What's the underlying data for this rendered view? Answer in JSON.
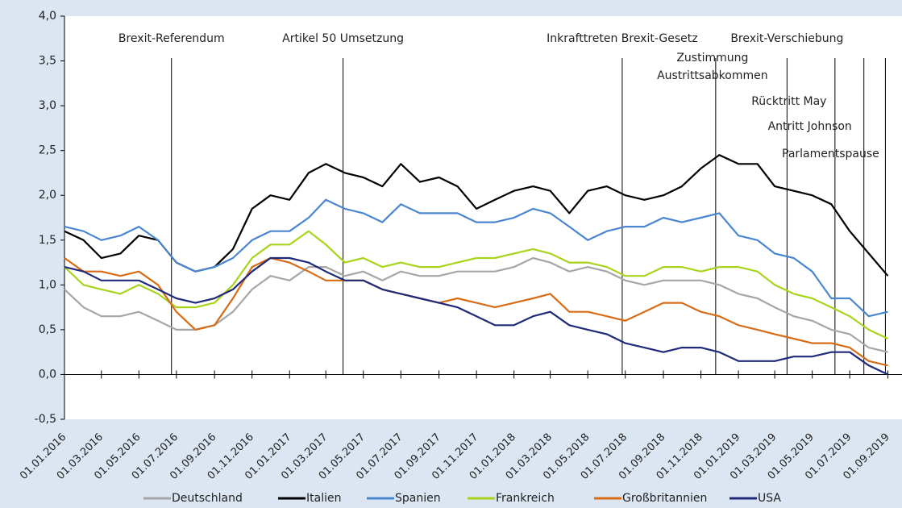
{
  "chart_data": {
    "type": "line",
    "x": [
      "01.01.2016",
      "01.02.2016",
      "01.03.2016",
      "01.04.2016",
      "01.05.2016",
      "01.06.2016",
      "01.07.2016",
      "01.08.2016",
      "01.09.2016",
      "01.10.2016",
      "01.11.2016",
      "01.12.2016",
      "01.01.2017",
      "01.02.2017",
      "01.03.2017",
      "01.04.2017",
      "01.05.2017",
      "01.06.2017",
      "01.07.2017",
      "01.08.2017",
      "01.09.2017",
      "01.10.2017",
      "01.11.2017",
      "01.12.2017",
      "01.01.2018",
      "01.02.2018",
      "01.03.2018",
      "01.04.2018",
      "01.05.2018",
      "01.06.2018",
      "01.07.2018",
      "01.08.2018",
      "01.09.2018",
      "01.10.2018",
      "01.11.2018",
      "01.12.2018",
      "01.01.2019",
      "01.02.2019",
      "01.03.2019",
      "01.04.2019",
      "01.05.2019",
      "01.06.2019",
      "01.07.2019",
      "01.08.2019",
      "01.09.2019"
    ],
    "series": [
      {
        "name": "Deutschland",
        "color": "#a6a6a6",
        "values": [
          0.95,
          0.75,
          0.65,
          0.65,
          0.7,
          0.6,
          0.5,
          0.5,
          0.55,
          0.7,
          0.95,
          1.1,
          1.05,
          1.2,
          1.2,
          1.1,
          1.15,
          1.05,
          1.15,
          1.1,
          1.1,
          1.15,
          1.15,
          1.15,
          1.2,
          1.3,
          1.25,
          1.15,
          1.2,
          1.15,
          1.05,
          1.0,
          1.05,
          1.05,
          1.05,
          1.0,
          0.9,
          0.85,
          0.75,
          0.65,
          0.6,
          0.5,
          0.45,
          0.3,
          0.25
        ]
      },
      {
        "name": "Italien",
        "color": "#000000",
        "values": [
          1.6,
          1.5,
          1.3,
          1.35,
          1.55,
          1.5,
          1.25,
          1.15,
          1.2,
          1.4,
          1.85,
          2.0,
          1.95,
          2.25,
          2.35,
          2.25,
          2.2,
          2.1,
          2.35,
          2.15,
          2.2,
          2.1,
          1.85,
          1.95,
          2.05,
          2.1,
          2.05,
          1.8,
          2.05,
          2.1,
          2.0,
          1.95,
          2.0,
          2.1,
          2.3,
          2.45,
          2.35,
          2.35,
          2.1,
          2.05,
          2.0,
          1.9,
          1.6,
          1.35,
          1.1
        ]
      },
      {
        "name": "Spanien",
        "color": "#4a86d0",
        "values": [
          1.65,
          1.6,
          1.5,
          1.55,
          1.65,
          1.5,
          1.25,
          1.15,
          1.2,
          1.3,
          1.5,
          1.6,
          1.6,
          1.75,
          1.95,
          1.85,
          1.8,
          1.7,
          1.9,
          1.8,
          1.8,
          1.8,
          1.7,
          1.7,
          1.75,
          1.85,
          1.8,
          1.65,
          1.5,
          1.6,
          1.65,
          1.65,
          1.75,
          1.7,
          1.75,
          1.8,
          1.55,
          1.5,
          1.35,
          1.3,
          1.15,
          0.85,
          0.85,
          0.65,
          0.7
        ]
      },
      {
        "name": "Frankreich",
        "color": "#a8d41c",
        "values": [
          1.2,
          1.0,
          0.95,
          0.9,
          1.0,
          0.9,
          0.75,
          0.75,
          0.8,
          1.0,
          1.3,
          1.45,
          1.45,
          1.6,
          1.45,
          1.25,
          1.3,
          1.2,
          1.25,
          1.2,
          1.2,
          1.25,
          1.3,
          1.3,
          1.35,
          1.4,
          1.35,
          1.25,
          1.25,
          1.2,
          1.1,
          1.1,
          1.2,
          1.2,
          1.15,
          1.2,
          1.2,
          1.15,
          1.0,
          0.9,
          0.85,
          0.75,
          0.65,
          0.5,
          0.4
        ]
      },
      {
        "name": "Großbritannien",
        "color": "#d86c16",
        "values": [
          1.3,
          1.15,
          1.15,
          1.1,
          1.15,
          1.0,
          0.7,
          0.5,
          0.55,
          0.85,
          1.2,
          1.3,
          1.25,
          1.15,
          1.05,
          1.05,
          1.05,
          0.95,
          0.9,
          0.85,
          0.8,
          0.85,
          0.8,
          0.75,
          0.8,
          0.85,
          0.9,
          0.7,
          0.7,
          0.65,
          0.6,
          0.7,
          0.8,
          0.8,
          0.7,
          0.65,
          0.55,
          0.5,
          0.45,
          0.4,
          0.35,
          0.35,
          0.3,
          0.15,
          0.1
        ]
      },
      {
        "name": "USA",
        "color": "#1f2a7a",
        "values": [
          1.2,
          1.15,
          1.05,
          1.05,
          1.05,
          0.95,
          0.85,
          0.8,
          0.85,
          0.95,
          1.15,
          1.3,
          1.3,
          1.25,
          1.15,
          1.05,
          1.05,
          0.95,
          0.9,
          0.85,
          0.8,
          0.75,
          0.65,
          0.55,
          0.55,
          0.65,
          0.7,
          0.55,
          0.5,
          0.45,
          0.35,
          0.3,
          0.25,
          0.3,
          0.3,
          0.25,
          0.15,
          0.15,
          0.15,
          0.2,
          0.2,
          0.25,
          0.25,
          0.1,
          0.0
        ]
      }
    ],
    "xlim": [
      "01.01.2016",
      "24.09.2019"
    ],
    "xticks": [
      "01.01.2016",
      "01.03.2016",
      "01.05.2016",
      "01.07.2016",
      "01.09.2016",
      "01.11.2016",
      "01.01.2017",
      "01.03.2017",
      "01.05.2017",
      "01.07.2017",
      "01.09.2017",
      "01.11.2017",
      "01.01.2018",
      "01.03.2018",
      "01.05.2018",
      "01.07.2018",
      "01.09.2018",
      "01.11.2018",
      "01.01.2019",
      "01.03.2019",
      "01.05.2019",
      "01.07.2019",
      "01.09.2019"
    ],
    "ylim": [
      -0.5,
      4.0
    ],
    "yticks": [
      {
        "value": -0.5,
        "label": "-0,5"
      },
      {
        "value": 0,
        "label": "0,0"
      },
      {
        "value": 0.5,
        "label": "0,5"
      },
      {
        "value": 1,
        "label": "1,0"
      },
      {
        "value": 1.5,
        "label": "1,5"
      },
      {
        "value": 2,
        "label": "2,0"
      },
      {
        "value": 2.5,
        "label": "2,5"
      },
      {
        "value": 3,
        "label": "3,0"
      },
      {
        "value": 3.5,
        "label": "3,5"
      },
      {
        "value": 4,
        "label": "4,0"
      }
    ],
    "grid": false,
    "legend": "bottom",
    "annotations": [
      {
        "date": "23.06.2016",
        "label": [
          "Brexit-Referendum"
        ]
      },
      {
        "date": "29.03.2017",
        "label": [
          "Artikel 50 Umsetzung"
        ]
      },
      {
        "date": "26.06.2018",
        "label": [
          "Inkrafttreten Brexit-Gesetz"
        ]
      },
      {
        "date": "25.11.2018",
        "label": [
          "Zustimmung",
          "Austrittsabkommen"
        ]
      },
      {
        "date": "21.03.2019",
        "label": [
          "Brexit-Verschiebung"
        ]
      },
      {
        "date": "07.06.2019",
        "label": [
          "Rücktritt May"
        ]
      },
      {
        "date": "24.07.2019",
        "label": [
          "Antritt Johnson"
        ]
      },
      {
        "date": "28.08.2019",
        "label": [
          "Parlamentspause"
        ]
      }
    ]
  }
}
